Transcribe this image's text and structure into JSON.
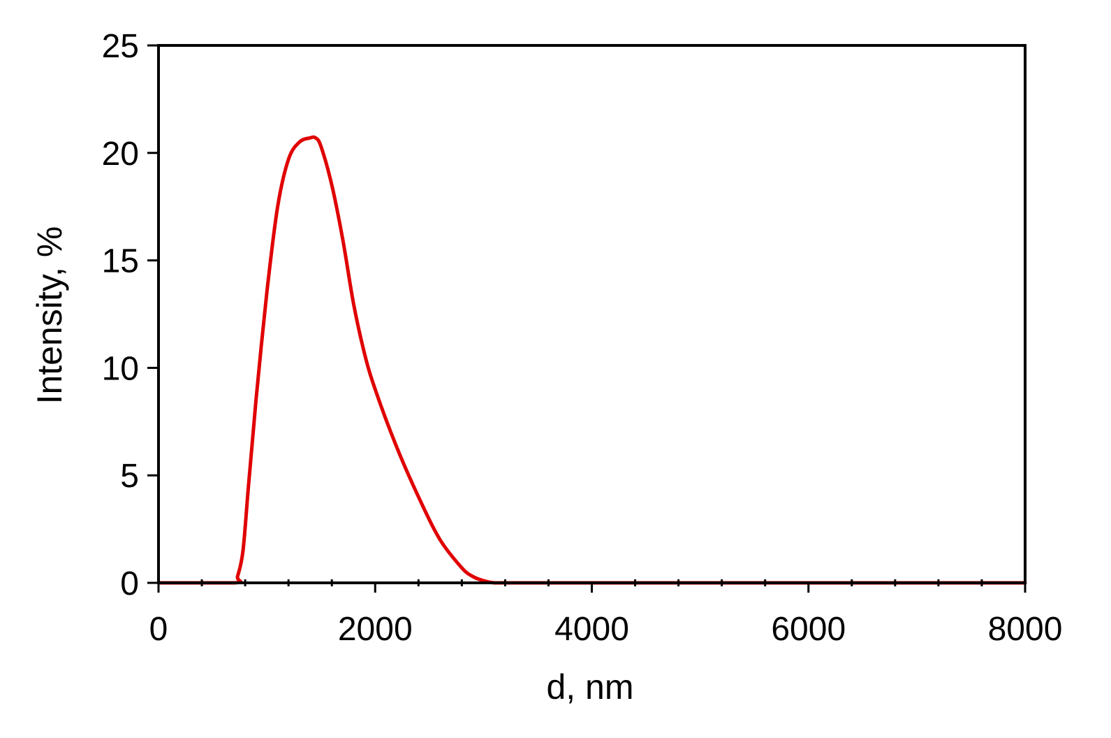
{
  "chart_data": {
    "type": "line",
    "title": "",
    "xlabel": "d, nm",
    "ylabel": "Intensity, %",
    "xlim": [
      0,
      8000
    ],
    "ylim": [
      0,
      25
    ],
    "x_ticks": [
      0,
      2000,
      4000,
      6000,
      8000
    ],
    "x_tick_labels": [
      "0",
      "2000",
      "4000",
      "6000",
      "8000"
    ],
    "x_minor_step": 400,
    "y_ticks": [
      0,
      5,
      10,
      15,
      20,
      25
    ],
    "y_tick_labels": [
      "0",
      "5",
      "10",
      "15",
      "20",
      "25"
    ],
    "grid": false,
    "legend": "none",
    "series": [
      {
        "color": "#e00000",
        "x": [
          0,
          700,
          730,
          780,
          830,
          900,
          1000,
          1100,
          1200,
          1300,
          1400,
          1450,
          1500,
          1600,
          1700,
          1800,
          1900,
          2000,
          2200,
          2400,
          2600,
          2800,
          2900,
          3000,
          3100,
          3200,
          4000,
          6000,
          8000
        ],
        "y": [
          0,
          0,
          0.3,
          1.5,
          4.5,
          8.5,
          13.5,
          17.5,
          19.7,
          20.5,
          20.7,
          20.7,
          20.3,
          18.5,
          16.0,
          13.0,
          10.7,
          9.0,
          6.3,
          4.0,
          2.0,
          0.7,
          0.3,
          0.1,
          0,
          0,
          0,
          0,
          0
        ]
      }
    ]
  }
}
